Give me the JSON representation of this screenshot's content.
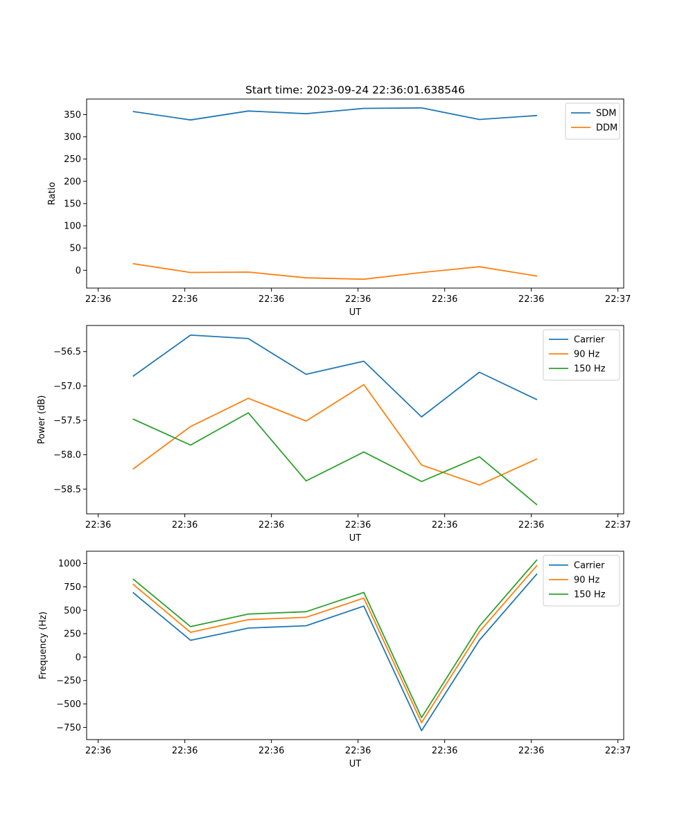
{
  "chart_data": [
    {
      "type": "line",
      "title": "Start time: 2023-09-24 22:36:01.638546",
      "xlabel": "UT",
      "ylabel": "Ratio",
      "x": [
        1,
        2,
        3,
        4,
        5,
        6,
        7,
        8
      ],
      "xlim": [
        0.2,
        9.5
      ],
      "x_ticks": [
        0.4,
        1.9,
        3.4,
        4.9,
        6.4,
        7.9,
        9.4
      ],
      "x_tick_labels": [
        "22:36",
        "22:36",
        "22:36",
        "22:36",
        "22:36",
        "22:36",
        "22:37"
      ],
      "ylim": [
        -40,
        385
      ],
      "y_ticks": [
        0,
        50,
        100,
        150,
        200,
        250,
        300,
        350
      ],
      "y_tick_labels": [
        "0",
        "50",
        "100",
        "150",
        "200",
        "250",
        "300",
        "350"
      ],
      "legend": "top-right",
      "series": [
        {
          "name": "SDM",
          "color": "#1f77b4",
          "values": [
            357,
            338,
            358,
            352,
            364,
            365,
            339,
            348
          ]
        },
        {
          "name": "DDM",
          "color": "#ff7f0e",
          "values": [
            15,
            -5,
            -4,
            -17,
            -20,
            -5,
            8,
            -13
          ]
        }
      ]
    },
    {
      "type": "line",
      "title": "",
      "xlabel": "UT",
      "ylabel": "Power (dB)",
      "x": [
        1,
        2,
        3,
        4,
        5,
        6,
        7,
        8
      ],
      "xlim": [
        0.2,
        9.5
      ],
      "x_ticks": [
        0.4,
        1.9,
        3.4,
        4.9,
        6.4,
        7.9,
        9.4
      ],
      "x_tick_labels": [
        "22:36",
        "22:36",
        "22:36",
        "22:36",
        "22:36",
        "22:36",
        "22:37"
      ],
      "ylim": [
        -58.86,
        -56.12
      ],
      "y_ticks": [
        -58.5,
        -58.0,
        -57.5,
        -57.0,
        -56.5
      ],
      "y_tick_labels": [
        "−58.5",
        "−58.0",
        "−57.5",
        "−57.0",
        "−56.5"
      ],
      "legend": "top-right",
      "series": [
        {
          "name": "Carrier",
          "color": "#1f77b4",
          "values": [
            -56.86,
            -56.26,
            -56.31,
            -56.83,
            -56.64,
            -57.45,
            -56.8,
            -57.2
          ]
        },
        {
          "name": "90 Hz",
          "color": "#ff7f0e",
          "values": [
            -58.21,
            -57.59,
            -57.18,
            -57.51,
            -56.98,
            -58.15,
            -58.44,
            -58.06
          ]
        },
        {
          "name": "150 Hz",
          "color": "#2ca02c",
          "values": [
            -57.48,
            -57.86,
            -57.39,
            -58.38,
            -57.96,
            -58.39,
            -58.03,
            -58.73
          ]
        }
      ]
    },
    {
      "type": "line",
      "title": "",
      "xlabel": "UT",
      "ylabel": "Frequency (Hz)",
      "x": [
        1,
        2,
        3,
        4,
        5,
        6,
        7,
        8
      ],
      "xlim": [
        0.2,
        9.5
      ],
      "x_ticks": [
        0.4,
        1.9,
        3.4,
        4.9,
        6.4,
        7.9,
        9.4
      ],
      "x_tick_labels": [
        "22:36",
        "22:36",
        "22:36",
        "22:36",
        "22:36",
        "22:36",
        "22:37"
      ],
      "ylim": [
        -880,
        1130
      ],
      "y_ticks": [
        -750,
        -500,
        -250,
        0,
        250,
        500,
        750,
        1000
      ],
      "y_tick_labels": [
        "−750",
        "−500",
        "−250",
        "0",
        "250",
        "500",
        "750",
        "1000"
      ],
      "legend": "top-right",
      "series": [
        {
          "name": "Carrier",
          "color": "#1f77b4",
          "values": [
            690,
            180,
            310,
            335,
            545,
            -785,
            180,
            890
          ]
        },
        {
          "name": "90 Hz",
          "color": "#ff7f0e",
          "values": [
            780,
            265,
            400,
            425,
            630,
            -700,
            270,
            980
          ]
        },
        {
          "name": "150 Hz",
          "color": "#2ca02c",
          "values": [
            835,
            325,
            460,
            485,
            690,
            -645,
            330,
            1040
          ]
        }
      ]
    }
  ]
}
